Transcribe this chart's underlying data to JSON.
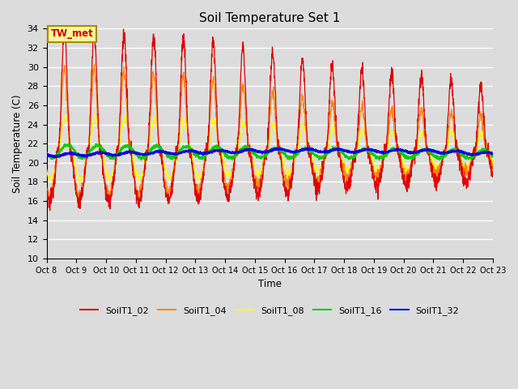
{
  "title": "Soil Temperature Set 1",
  "xlabel": "Time",
  "ylabel": "Soil Temperature (C)",
  "ylim": [
    10,
    34
  ],
  "yticks": [
    10,
    12,
    14,
    16,
    18,
    20,
    22,
    24,
    26,
    28,
    30,
    32,
    34
  ],
  "background_color": "#dcdcdc",
  "plot_bg_color": "#dcdcdc",
  "legend_labels": [
    "SoilT1_02",
    "SoilT1_04",
    "SoilT1_08",
    "SoilT1_16",
    "SoilT1_32"
  ],
  "legend_colors": [
    "#dd0000",
    "#ff8800",
    "#ffff00",
    "#00cc00",
    "#0000dd"
  ],
  "annotation_text": "TW_met",
  "annotation_color": "#cc0000",
  "annotation_bg": "#ffff99",
  "n_days": 15,
  "start_day": 8,
  "figsize": [
    6.4,
    4.8
  ],
  "dpi": 100
}
